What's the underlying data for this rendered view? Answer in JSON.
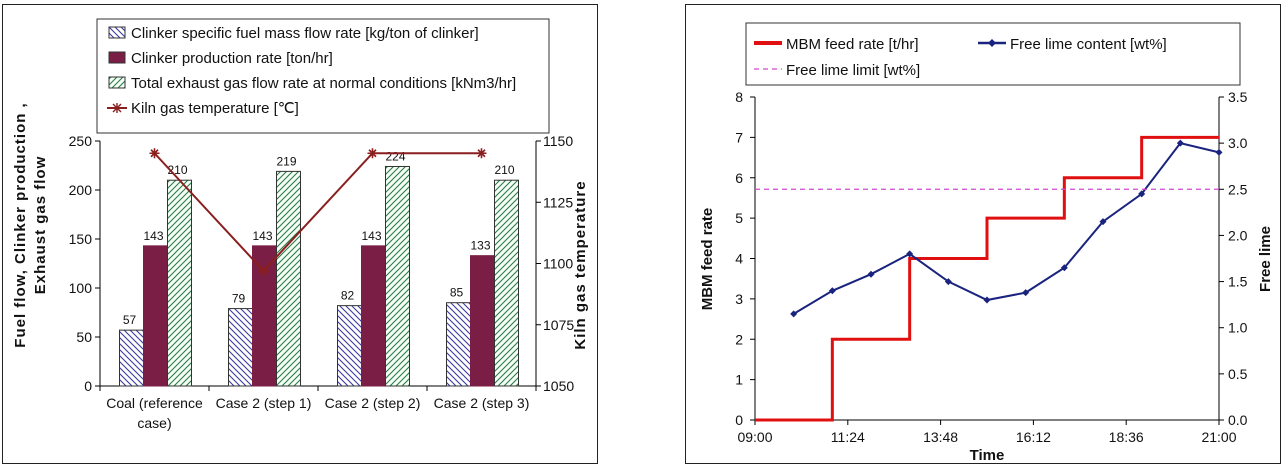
{
  "chart_data": [
    {
      "type": "bar",
      "categories": [
        "Coal (reference case)",
        "Case 2 (step 1)",
        "Case 2 (step 2)",
        "Case 2 (step 3)"
      ],
      "category_lines": [
        [
          "Coal (reference",
          "case)"
        ],
        [
          "Case 2 (step 1)"
        ],
        [
          "Case 2 (step 2)"
        ],
        [
          "Case 2 (step 3)"
        ]
      ],
      "series": [
        {
          "name": "Clinker specific fuel mass flow rate [kg/ton of clinker]",
          "values": [
            57,
            79,
            82,
            85
          ],
          "color": "#3a3aa0",
          "fill": "hatch-blue"
        },
        {
          "name": "Clinker production rate [ton/hr]",
          "values": [
            143,
            143,
            143,
            133
          ],
          "color": "#7b1e45",
          "fill": "solid"
        },
        {
          "name": "Total exhaust gas flow rate at normal conditions [kNm3/hr]",
          "values": [
            210,
            219,
            224,
            210
          ],
          "color": "#2c7a4a",
          "fill": "hatch-green"
        },
        {
          "name": "Kiln gas temperature [℃]",
          "type": "line",
          "axis": "right",
          "values": [
            1145,
            1097,
            1145,
            1145
          ],
          "color": "#8b1e1e",
          "marker": "star"
        }
      ],
      "ylabel_lines": [
        "Fuel flow, Clinker production ,",
        "Exhaust gas flow"
      ],
      "y2label": "Kiln gas temperature",
      "ylim": [
        0,
        250
      ],
      "y2lim": [
        1050,
        1150
      ],
      "yticks": [
        0,
        50,
        100,
        150,
        200,
        250
      ],
      "y2ticks": [
        1050,
        1075,
        1100,
        1125,
        1150
      ],
      "legend": "top"
    },
    {
      "type": "line",
      "series": [
        {
          "name": "MBM feed rate [t/hr]",
          "axis": "left",
          "color": "#e01010",
          "step": true,
          "x": [
            "09:00",
            "11:00",
            "11:00",
            "13:00",
            "13:00",
            "15:00",
            "15:00",
            "17:00",
            "17:00",
            "19:00",
            "19:00",
            "21:00"
          ],
          "y": [
            0,
            0,
            2,
            2,
            4,
            4,
            5,
            5,
            6,
            6,
            7,
            7
          ]
        },
        {
          "name": "Free lime content [wt%]",
          "axis": "right",
          "color": "#1a237e",
          "marker": "diamond",
          "x": [
            "10:00",
            "11:00",
            "12:00",
            "13:00",
            "14:00",
            "15:00",
            "16:00",
            "17:00",
            "18:00",
            "19:00",
            "20:00",
            "21:00"
          ],
          "y": [
            1.15,
            1.4,
            1.58,
            1.8,
            1.5,
            1.3,
            1.38,
            1.65,
            2.15,
            2.45,
            3.0,
            2.9
          ]
        },
        {
          "name": "Free lime limit [wt%]",
          "axis": "right",
          "color": "#d048d0",
          "dashed": true,
          "x": [
            "09:00",
            "21:00"
          ],
          "y": [
            2.5,
            2.5
          ]
        }
      ],
      "xlabel": "Time",
      "ylabel": "MBM feed rate",
      "y2label": "Free lime",
      "xticks": [
        "09:00",
        "11:24",
        "13:48",
        "16:12",
        "18:36",
        "21:00"
      ],
      "ylim": [
        0,
        8
      ],
      "y2lim": [
        0,
        3.5
      ],
      "yticks": [
        0,
        1,
        2,
        3,
        4,
        5,
        6,
        7,
        8
      ],
      "y2ticks": [
        "0.0",
        "0.5",
        "1.0",
        "1.5",
        "2.0",
        "2.5",
        "3.0",
        "3.5"
      ],
      "legend": "top"
    }
  ]
}
